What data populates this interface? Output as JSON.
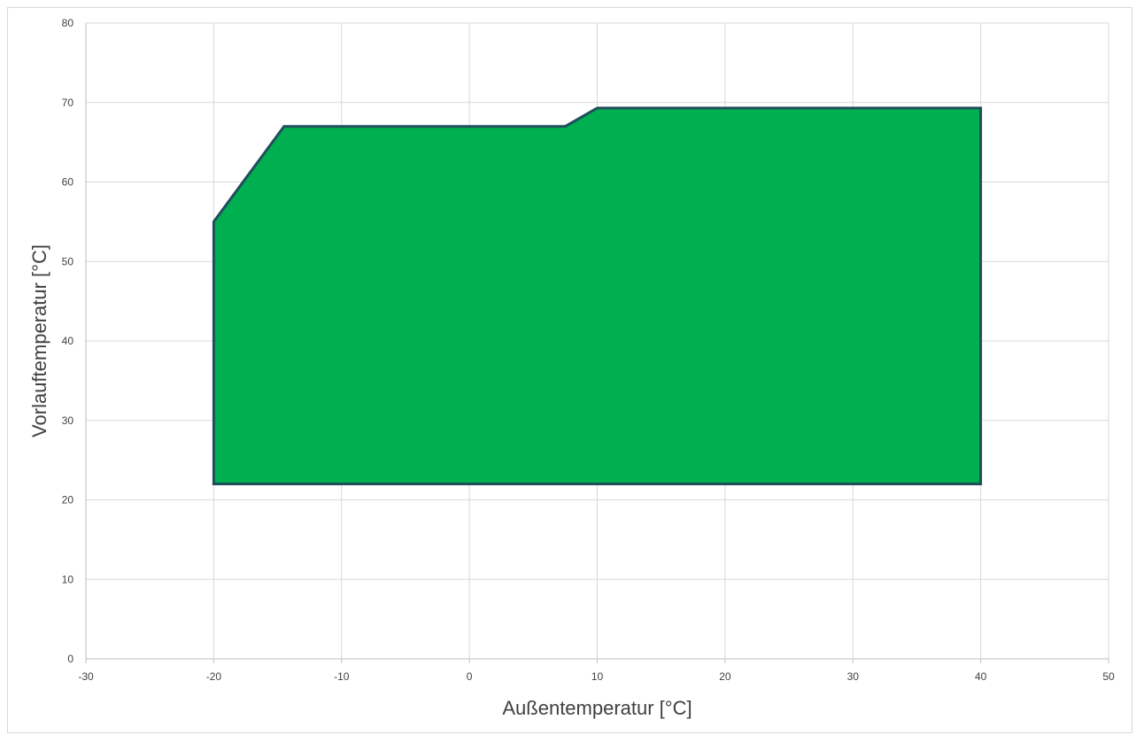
{
  "chart_data": {
    "type": "area",
    "title": "",
    "xlabel": "Außentemperatur [°C]",
    "ylabel": "Vorlauftemperatur [°C]",
    "xlim": [
      -30,
      50
    ],
    "ylim": [
      0,
      80
    ],
    "x_ticks": [
      -30,
      -20,
      -10,
      0,
      10,
      20,
      30,
      40,
      50
    ],
    "y_ticks": [
      0,
      10,
      20,
      30,
      40,
      50,
      60,
      70,
      80
    ],
    "grid": true,
    "legend": "none",
    "series": [
      {
        "fill_color": "#00B050",
        "line_color": "#1F4E5C",
        "points": [
          {
            "x": -20,
            "y": 22
          },
          {
            "x": -20,
            "y": 55
          },
          {
            "x": -14.5,
            "y": 67
          },
          {
            "x": 7.5,
            "y": 67
          },
          {
            "x": 10,
            "y": 69.3
          },
          {
            "x": 40,
            "y": 69.3
          },
          {
            "x": 40,
            "y": 22
          }
        ]
      }
    ]
  }
}
